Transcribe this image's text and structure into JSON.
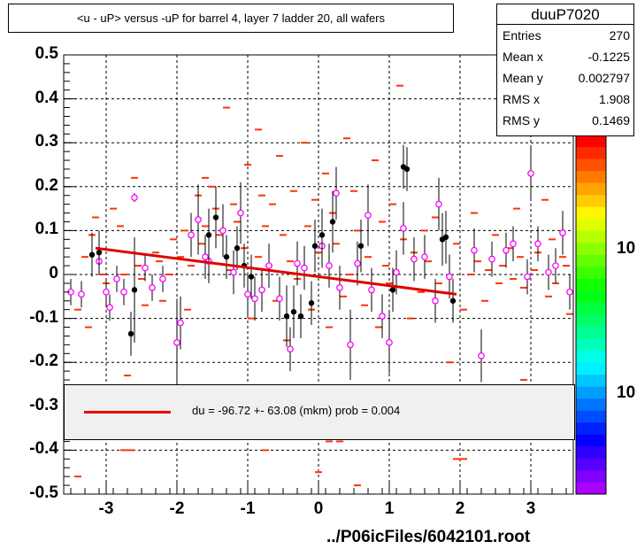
{
  "title": "<u - uP>       versus  -uP for barrel 4, layer 7 ladder 20, all wafers",
  "stats": {
    "name": "duuP7020",
    "rows": [
      {
        "label": "Entries",
        "value": "270"
      },
      {
        "label": "Mean x",
        "value": "-0.1225"
      },
      {
        "label": "Mean y",
        "value": "0.002797"
      },
      {
        "label": "RMS x",
        "value": "1.908"
      },
      {
        "label": "RMS y",
        "value": "0.1469"
      }
    ]
  },
  "legend": {
    "text": "du =  -96.72 +- 63.08 (mkm) prob = 0.004"
  },
  "footer": "../P06icFiles/6042101.root",
  "colorbar_labels": [
    "10",
    "10"
  ],
  "colors": {
    "fit": "#e00000",
    "profile_marker": "#ff00ff",
    "scatter": "#ff3300",
    "points": "#000000"
  },
  "chart_data": {
    "type": "scatter",
    "title": "<u - uP>       versus  -uP for barrel 4, layer 7 ladder 20, all wafers",
    "xlim": [
      -3.6,
      3.6
    ],
    "ylim": [
      -0.5,
      0.5
    ],
    "x_ticks": [
      "-3",
      "-2",
      "-1",
      "0",
      "1",
      "2",
      "3"
    ],
    "y_ticks": [
      "0.5",
      "0.4",
      "0.3",
      "0.2",
      "0.1",
      "0",
      "-0.1",
      "-0.2",
      "-0.3",
      "-0.4",
      "-0.5"
    ],
    "grid": true,
    "fit_line": {
      "x": [
        -3.15,
        1.95
      ],
      "y": [
        0.06,
        -0.045
      ]
    },
    "profile": [
      {
        "x": -3.5,
        "y": -0.04,
        "err": 0.03
      },
      {
        "x": -3.35,
        "y": -0.045,
        "err": 0.03
      },
      {
        "x": -3.1,
        "y": 0.03,
        "err": 0.03
      },
      {
        "x": -3.0,
        "y": -0.04,
        "err": 0.03
      },
      {
        "x": -2.95,
        "y": -0.075,
        "err": 0.03
      },
      {
        "x": -2.85,
        "y": -0.01,
        "err": 0.03
      },
      {
        "x": -2.75,
        "y": -0.04,
        "err": 0.03
      },
      {
        "x": -2.6,
        "y": 0.175,
        "err": 0.01
      },
      {
        "x": -2.45,
        "y": 0.015,
        "err": 0.03
      },
      {
        "x": -2.35,
        "y": -0.03,
        "err": 0.03
      },
      {
        "x": -2.2,
        "y": -0.01,
        "err": 0.03
      },
      {
        "x": -2.0,
        "y": -0.155,
        "err": 0.1
      },
      {
        "x": -1.95,
        "y": -0.11,
        "err": 0.06
      },
      {
        "x": -1.8,
        "y": 0.09,
        "err": 0.05
      },
      {
        "x": -1.7,
        "y": 0.125,
        "err": 0.08
      },
      {
        "x": -1.6,
        "y": 0.04,
        "err": 0.05
      },
      {
        "x": -1.55,
        "y": 0.03,
        "err": 0.05
      },
      {
        "x": -1.35,
        "y": 0.1,
        "err": 0.06
      },
      {
        "x": -1.2,
        "y": 0.005,
        "err": 0.05
      },
      {
        "x": -1.1,
        "y": 0.14,
        "err": 0.07
      },
      {
        "x": -1.0,
        "y": -0.045,
        "err": 0.05
      },
      {
        "x": -0.9,
        "y": -0.055,
        "err": 0.05
      },
      {
        "x": -0.8,
        "y": -0.035,
        "err": 0.05
      },
      {
        "x": -0.7,
        "y": 0.02,
        "err": 0.05
      },
      {
        "x": -0.55,
        "y": -0.055,
        "err": 0.05
      },
      {
        "x": -0.4,
        "y": -0.17,
        "err": 0.05
      },
      {
        "x": -0.3,
        "y": 0.025,
        "err": 0.05
      },
      {
        "x": -0.2,
        "y": 0.015,
        "err": 0.05
      },
      {
        "x": 0.05,
        "y": 0.065,
        "err": 0.05
      },
      {
        "x": 0.15,
        "y": 0.02,
        "err": 0.05
      },
      {
        "x": 0.25,
        "y": 0.185,
        "err": 0.06
      },
      {
        "x": 0.3,
        "y": -0.03,
        "err": 0.05
      },
      {
        "x": 0.45,
        "y": -0.16,
        "err": 0.08
      },
      {
        "x": 0.55,
        "y": 0.025,
        "err": 0.05
      },
      {
        "x": 0.7,
        "y": 0.135,
        "err": 0.07
      },
      {
        "x": 0.75,
        "y": -0.035,
        "err": 0.05
      },
      {
        "x": 0.9,
        "y": -0.095,
        "err": 0.05
      },
      {
        "x": 1.0,
        "y": -0.155,
        "err": 0.07
      },
      {
        "x": 1.1,
        "y": 0.005,
        "err": 0.05
      },
      {
        "x": 1.2,
        "y": 0.105,
        "err": 0.06
      },
      {
        "x": 1.35,
        "y": 0.035,
        "err": 0.05
      },
      {
        "x": 1.5,
        "y": 0.04,
        "err": 0.05
      },
      {
        "x": 1.65,
        "y": -0.06,
        "err": 0.05
      },
      {
        "x": 1.7,
        "y": 0.16,
        "err": 0.06
      },
      {
        "x": 1.85,
        "y": -0.005,
        "err": 0.05
      },
      {
        "x": 2.2,
        "y": 0.055,
        "err": 0.05
      },
      {
        "x": 2.3,
        "y": -0.185,
        "err": 0.06
      },
      {
        "x": 2.45,
        "y": 0.035,
        "err": 0.04
      },
      {
        "x": 2.65,
        "y": 0.055,
        "err": 0.04
      },
      {
        "x": 2.75,
        "y": 0.07,
        "err": 0.04
      },
      {
        "x": 2.95,
        "y": -0.005,
        "err": 0.04
      },
      {
        "x": 3.0,
        "y": 0.23,
        "err": 0.06
      },
      {
        "x": 3.1,
        "y": 0.07,
        "err": 0.04
      },
      {
        "x": 3.25,
        "y": 0.005,
        "err": 0.04
      },
      {
        "x": 3.35,
        "y": 0.02,
        "err": 0.04
      },
      {
        "x": 3.45,
        "y": 0.095,
        "err": 0.05
      },
      {
        "x": 3.55,
        "y": -0.04,
        "err": 0.04
      }
    ],
    "black_points": [
      {
        "x": -3.2,
        "y": 0.045,
        "err": 0.05
      },
      {
        "x": -3.1,
        "y": 0.05,
        "err": 0.05
      },
      {
        "x": -2.65,
        "y": -0.135,
        "err": 0.05
      },
      {
        "x": -2.6,
        "y": -0.035,
        "err": 0.12
      },
      {
        "x": -1.55,
        "y": 0.09,
        "err": 0.06
      },
      {
        "x": -1.45,
        "y": 0.13,
        "err": 0.07
      },
      {
        "x": -1.3,
        "y": 0.04,
        "err": 0.05
      },
      {
        "x": -1.15,
        "y": 0.06,
        "err": 0.05
      },
      {
        "x": -1.05,
        "y": 0.02,
        "err": 0.05
      },
      {
        "x": -0.95,
        "y": -0.005,
        "err": 0.05
      },
      {
        "x": -0.45,
        "y": -0.095,
        "err": 0.07
      },
      {
        "x": -0.35,
        "y": -0.085,
        "err": 0.06
      },
      {
        "x": -0.25,
        "y": -0.095,
        "err": 0.05
      },
      {
        "x": -0.1,
        "y": -0.065,
        "err": 0.05
      },
      {
        "x": -0.05,
        "y": 0.065,
        "err": 0.06
      },
      {
        "x": 0.05,
        "y": 0.09,
        "err": 0.06
      },
      {
        "x": 0.2,
        "y": 0.12,
        "err": 0.07
      },
      {
        "x": 0.6,
        "y": 0.065,
        "err": 0.06
      },
      {
        "x": 1.05,
        "y": -0.035,
        "err": 0.05
      },
      {
        "x": 1.2,
        "y": 0.245,
        "err": 0.05
      },
      {
        "x": 1.25,
        "y": 0.24,
        "err": 0.05
      },
      {
        "x": 1.75,
        "y": 0.08,
        "err": 0.06
      },
      {
        "x": 1.8,
        "y": 0.085,
        "err": 0.06
      },
      {
        "x": 1.9,
        "y": -0.06,
        "err": 0.05
      }
    ],
    "scatter": [
      [
        -3.4,
        -0.08
      ],
      [
        -3.3,
        0.04
      ],
      [
        -3.25,
        -0.12
      ],
      [
        -3.2,
        0.09
      ],
      [
        -3.15,
        0.13
      ],
      [
        -3.05,
        0.0
      ],
      [
        -3.0,
        -0.02
      ],
      [
        -2.9,
        0.15
      ],
      [
        -2.8,
        0.11
      ],
      [
        -2.75,
        0.0
      ],
      [
        -2.7,
        -0.23
      ],
      [
        -2.6,
        0.22
      ],
      [
        -2.55,
        0.02
      ],
      [
        -2.5,
        -0.01
      ],
      [
        -2.45,
        -0.07
      ],
      [
        -2.3,
        0.05
      ],
      [
        -2.25,
        0.03
      ],
      [
        -2.2,
        -0.06
      ],
      [
        -2.1,
        0.0
      ],
      [
        -2.05,
        0.08
      ],
      [
        -1.95,
        0.04
      ],
      [
        -1.9,
        0.1
      ],
      [
        -1.85,
        -0.08
      ],
      [
        -1.8,
        0.02
      ],
      [
        -1.7,
        0.18
      ],
      [
        -1.65,
        0.07
      ],
      [
        -1.6,
        0.11
      ],
      [
        -1.5,
        0.2
      ],
      [
        -1.45,
        0.15
      ],
      [
        -1.4,
        0.09
      ],
      [
        -1.3,
        0.38
      ],
      [
        -1.25,
        0.01
      ],
      [
        -1.2,
        0.16
      ],
      [
        -1.15,
        0.12
      ],
      [
        -1.05,
        0.06
      ],
      [
        -1.0,
        0.25
      ],
      [
        -0.95,
        -0.1
      ],
      [
        -0.85,
        0.04
      ],
      [
        -0.8,
        0.18
      ],
      [
        -0.75,
        0.11
      ],
      [
        -0.7,
        0.02
      ],
      [
        -0.65,
        0.16
      ],
      [
        -0.6,
        -0.06
      ],
      [
        -0.55,
        0.27
      ],
      [
        -0.5,
        0.09
      ],
      [
        -0.45,
        -0.15
      ],
      [
        -0.4,
        0.03
      ],
      [
        -0.35,
        0.19
      ],
      [
        -0.3,
        -0.01
      ],
      [
        -0.2,
        0.3
      ],
      [
        -0.15,
        0.11
      ],
      [
        -0.1,
        -0.08
      ],
      [
        -0.05,
        0.17
      ],
      [
        0.0,
        0.05
      ],
      [
        0.1,
        0.23
      ],
      [
        0.15,
        -0.12
      ],
      [
        0.2,
        0.14
      ],
      [
        0.25,
        0.07
      ],
      [
        0.35,
        -0.05
      ],
      [
        0.4,
        0.31
      ],
      [
        0.45,
        0.0
      ],
      [
        0.5,
        0.19
      ],
      [
        0.55,
        0.1
      ],
      [
        0.65,
        -0.07
      ],
      [
        0.7,
        0.04
      ],
      [
        0.8,
        0.26
      ],
      [
        0.85,
        -0.12
      ],
      [
        0.9,
        0.12
      ],
      [
        0.95,
        0.02
      ],
      [
        1.0,
        -0.02
      ],
      [
        1.05,
        0.16
      ],
      [
        1.15,
        0.43
      ],
      [
        1.2,
        0.08
      ],
      [
        1.3,
        -0.1
      ],
      [
        1.35,
        0.05
      ],
      [
        1.45,
        -0.04
      ],
      [
        1.5,
        0.1
      ],
      [
        1.55,
        0.03
      ],
      [
        1.65,
        0.13
      ],
      [
        1.7,
        -0.02
      ],
      [
        1.85,
        -0.2
      ],
      [
        1.95,
        0.07
      ],
      [
        2.05,
        -0.08
      ],
      [
        2.15,
        0.0
      ],
      [
        2.2,
        0.14
      ],
      [
        2.25,
        0.03
      ],
      [
        2.35,
        -0.06
      ],
      [
        2.4,
        0.01
      ],
      [
        2.5,
        0.09
      ],
      [
        2.55,
        -0.02
      ],
      [
        2.6,
        0.02
      ],
      [
        2.7,
        0.06
      ],
      [
        2.75,
        -0.01
      ],
      [
        2.8,
        0.15
      ],
      [
        2.85,
        0.04
      ],
      [
        2.9,
        -0.03
      ],
      [
        3.0,
        0.35
      ],
      [
        3.05,
        0.01
      ],
      [
        3.1,
        0.05
      ],
      [
        3.2,
        0.17
      ],
      [
        3.25,
        -0.05
      ],
      [
        3.3,
        0.08
      ],
      [
        3.35,
        -0.02
      ],
      [
        3.45,
        0.04
      ],
      [
        3.5,
        0.02
      ],
      [
        3.55,
        -0.09
      ],
      [
        -2.65,
        -0.4
      ],
      [
        0.0,
        -0.45
      ],
      [
        0.15,
        -0.38
      ],
      [
        0.3,
        -0.38
      ],
      [
        1.95,
        -0.42
      ],
      [
        2.05,
        -0.42
      ],
      [
        0.55,
        -0.48
      ],
      [
        -0.75,
        -0.4
      ],
      [
        2.9,
        -0.24
      ],
      [
        -3.4,
        -0.46
      ],
      [
        -2.75,
        -0.4
      ],
      [
        1.6,
        -0.34
      ],
      [
        -0.85,
        0.33
      ],
      [
        -1.6,
        0.22
      ]
    ]
  }
}
